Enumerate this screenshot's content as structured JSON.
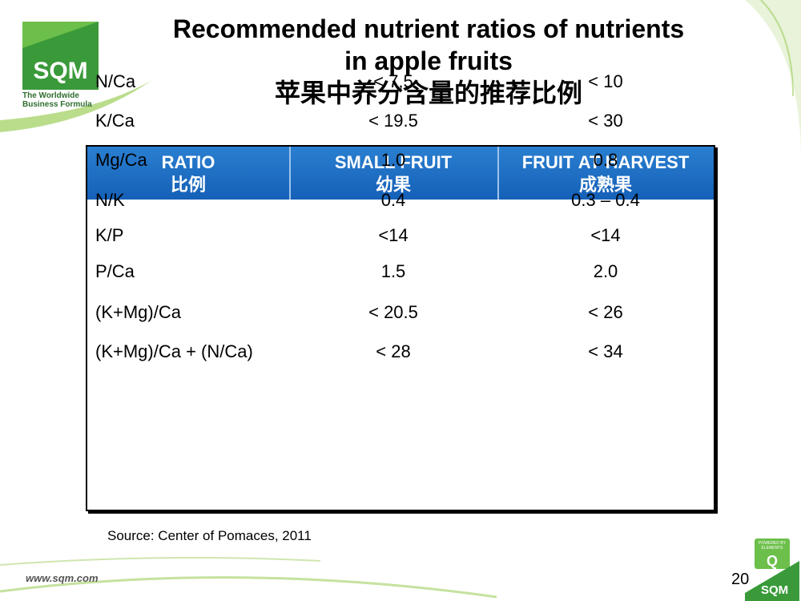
{
  "logo": {
    "name": "SQM",
    "tagline": [
      "The Worldwide",
      "Business Formula"
    ]
  },
  "header": {
    "title": [
      "Recommended nutrient ratios of nutrients",
      "in apple fruits",
      "苹果中养分含量的推荐比例"
    ]
  },
  "table": {
    "columns": [
      {
        "en": "RATIO",
        "zh": "比例"
      },
      {
        "en": "SMALL FRUIT",
        "zh": "幼果"
      },
      {
        "en": "FRUIT AT HARVEST",
        "zh": "成熟果"
      }
    ],
    "rows": [
      [
        "N/Ca",
        "< 7,5",
        "< 10"
      ],
      [
        "K/Ca",
        "< 19.5",
        "< 30"
      ],
      [
        "Mg/Ca",
        "1.0",
        "0.8"
      ],
      [
        "N/K",
        "0.4",
        "0.3 – 0.4"
      ],
      [
        "K/P",
        "<14",
        "<14"
      ],
      [
        "P/Ca",
        "1.5",
        "2.0"
      ],
      [
        "(K+Mg)/Ca",
        "< 20.5",
        "< 26"
      ],
      [
        "(K+Mg)/Ca + (N/Ca)",
        "< 28",
        "< 34"
      ]
    ]
  },
  "source": "Source: Center of Pomaces, 2011",
  "footer": {
    "url": "www.sqm.com",
    "page": "20",
    "badge": {
      "top": "POWERED BY ELEMENTS",
      "letter": "Q",
      "name": "SQM"
    }
  }
}
